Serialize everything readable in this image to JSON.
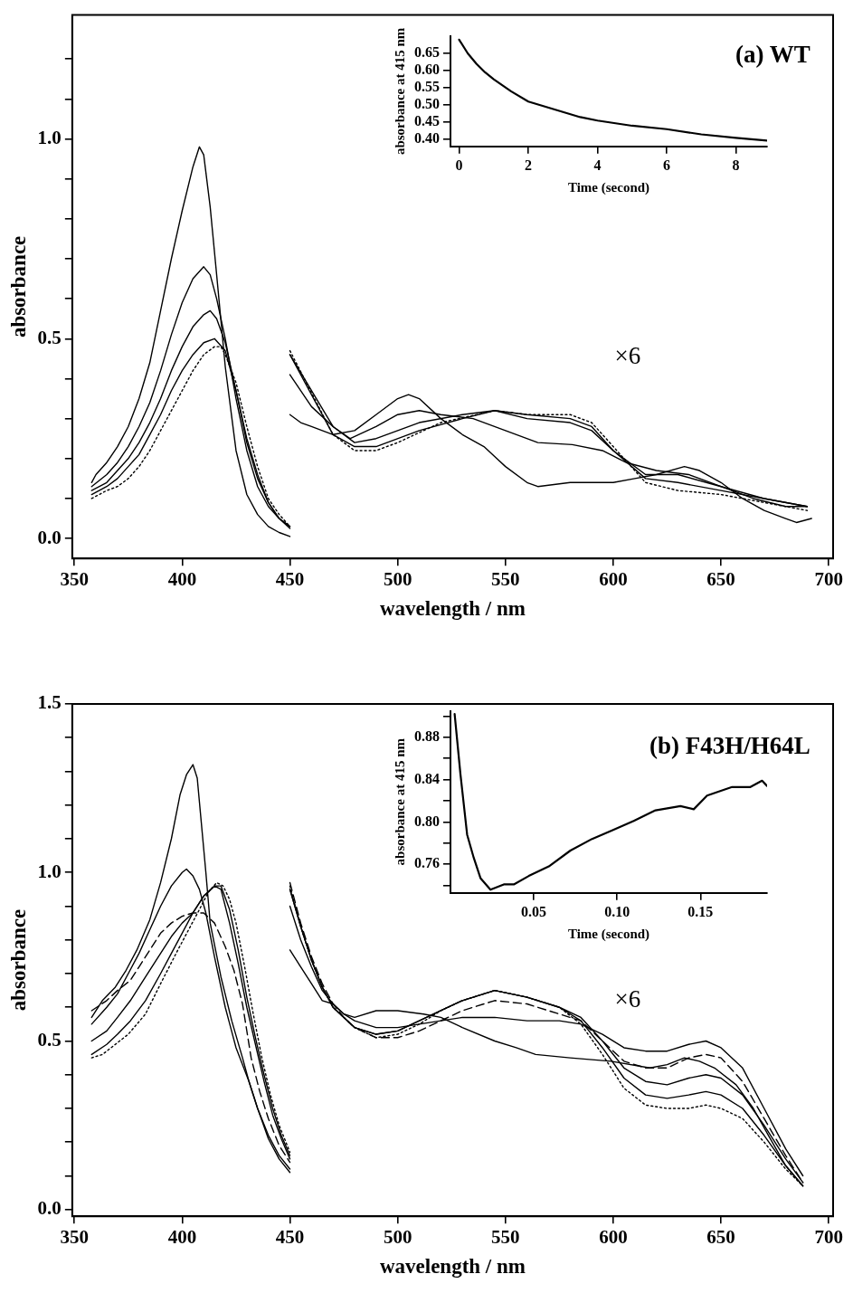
{
  "chart_data": [
    {
      "type": "line",
      "title": "(a) WT",
      "xlabel": "wavelength / nm",
      "ylabel": "absorbance",
      "annotations": [
        "×6"
      ],
      "marker": "none",
      "xlim": [
        349,
        702
      ],
      "ylim": [
        -0.05,
        1.31
      ],
      "xticks": [
        350,
        400,
        450,
        500,
        550,
        600,
        650,
        700
      ],
      "yticks": [
        {
          "value": 0,
          "label": "0.0"
        },
        {
          "value": 0.1,
          "label": null
        },
        {
          "value": 0.2,
          "label": null
        },
        {
          "value": 0.3,
          "label": null
        },
        {
          "value": 0.4,
          "label": null
        },
        {
          "value": 0.5,
          "label": "0.5"
        },
        {
          "value": 0.6,
          "label": null
        },
        {
          "value": 0.7,
          "label": null
        },
        {
          "value": 0.8,
          "label": null
        },
        {
          "value": 0.9,
          "label": null
        },
        {
          "value": 1,
          "label": "1.0"
        },
        {
          "value": 1.1,
          "label": null
        },
        {
          "value": 1.2,
          "label": null
        }
      ],
      "series": [
        {
          "color": "#000000",
          "line_style": "solid",
          "x": [
            358,
            360,
            365,
            370,
            375,
            380,
            385,
            390,
            395,
            400,
            405,
            408,
            410,
            413,
            416,
            420,
            425,
            430,
            435,
            440,
            445,
            450
          ],
          "values": [
            0.14,
            0.16,
            0.19,
            0.23,
            0.28,
            0.35,
            0.44,
            0.57,
            0.7,
            0.82,
            0.93,
            0.98,
            0.96,
            0.83,
            0.66,
            0.43,
            0.22,
            0.11,
            0.06,
            0.03,
            0.015,
            0.005
          ]
        },
        {
          "color": "#000000",
          "line_style": "solid",
          "x": [
            358,
            365,
            370,
            375,
            380,
            385,
            390,
            395,
            400,
            405,
            410,
            413,
            416,
            420,
            425,
            430,
            435,
            440,
            445,
            450
          ],
          "values": [
            0.13,
            0.16,
            0.19,
            0.23,
            0.28,
            0.34,
            0.42,
            0.51,
            0.59,
            0.65,
            0.68,
            0.66,
            0.6,
            0.5,
            0.35,
            0.22,
            0.13,
            0.08,
            0.05,
            0.025
          ]
        },
        {
          "color": "#000000",
          "line_style": "solid",
          "x": [
            358,
            365,
            370,
            375,
            380,
            385,
            390,
            395,
            400,
            405,
            410,
            413,
            416,
            420,
            425,
            430,
            435,
            440,
            445,
            450
          ],
          "values": [
            0.12,
            0.14,
            0.17,
            0.2,
            0.24,
            0.29,
            0.35,
            0.42,
            0.48,
            0.53,
            0.56,
            0.57,
            0.55,
            0.49,
            0.37,
            0.24,
            0.15,
            0.09,
            0.05,
            0.03
          ]
        },
        {
          "color": "#000000",
          "line_style": "solid",
          "x": [
            358,
            365,
            370,
            375,
            380,
            385,
            390,
            395,
            400,
            405,
            410,
            415,
            420,
            425,
            430,
            435,
            440,
            445,
            450
          ],
          "values": [
            0.11,
            0.13,
            0.15,
            0.18,
            0.21,
            0.26,
            0.31,
            0.37,
            0.42,
            0.46,
            0.49,
            0.5,
            0.47,
            0.37,
            0.25,
            0.16,
            0.09,
            0.05,
            0.03
          ]
        },
        {
          "color": "#000000",
          "line_style": "dotted",
          "x": [
            358,
            365,
            370,
            375,
            380,
            385,
            390,
            395,
            400,
            405,
            410,
            415,
            418,
            420,
            425,
            430,
            435,
            440,
            445,
            450
          ],
          "values": [
            0.1,
            0.12,
            0.13,
            0.15,
            0.18,
            0.22,
            0.27,
            0.32,
            0.37,
            0.42,
            0.46,
            0.48,
            0.48,
            0.46,
            0.39,
            0.28,
            0.18,
            0.1,
            0.06,
            0.03
          ]
        },
        {
          "color": "#000000",
          "line_style": "solid",
          "x": [
            450,
            455,
            460,
            465,
            470,
            480,
            490,
            500,
            505,
            510,
            520,
            530,
            540,
            550,
            560,
            565,
            580,
            600,
            610,
            620,
            633,
            640,
            650,
            660,
            670,
            680,
            685,
            692
          ],
          "values": [
            0.31,
            0.29,
            0.28,
            0.27,
            0.26,
            0.27,
            0.31,
            0.35,
            0.36,
            0.35,
            0.3,
            0.26,
            0.23,
            0.18,
            0.14,
            0.13,
            0.14,
            0.14,
            0.15,
            0.16,
            0.18,
            0.17,
            0.14,
            0.1,
            0.07,
            0.05,
            0.04,
            0.05
          ]
        },
        {
          "color": "#000000",
          "line_style": "solid",
          "x": [
            450,
            460,
            470,
            478,
            490,
            500,
            510,
            520,
            535,
            550,
            565,
            581,
            595,
            606,
            620,
            635,
            650,
            665,
            680,
            690
          ],
          "values": [
            0.41,
            0.33,
            0.28,
            0.25,
            0.28,
            0.31,
            0.32,
            0.31,
            0.3,
            0.27,
            0.24,
            0.235,
            0.22,
            0.19,
            0.17,
            0.16,
            0.13,
            0.1,
            0.08,
            0.08
          ]
        },
        {
          "color": "#000000",
          "line_style": "solid",
          "x": [
            450,
            470,
            480,
            490,
            510,
            530,
            545,
            560,
            580,
            590,
            600,
            615,
            630,
            650,
            670,
            690
          ],
          "values": [
            0.46,
            0.28,
            0.24,
            0.25,
            0.29,
            0.31,
            0.32,
            0.3,
            0.29,
            0.27,
            0.22,
            0.16,
            0.16,
            0.13,
            0.1,
            0.08
          ]
        },
        {
          "color": "#000000",
          "line_style": "solid",
          "x": [
            450,
            470,
            480,
            490,
            510,
            530,
            545,
            560,
            580,
            590,
            600,
            615,
            630,
            650,
            670,
            690
          ],
          "values": [
            0.46,
            0.26,
            0.23,
            0.23,
            0.27,
            0.3,
            0.32,
            0.31,
            0.3,
            0.28,
            0.22,
            0.15,
            0.14,
            0.12,
            0.1,
            0.08
          ]
        },
        {
          "color": "#000000",
          "line_style": "dotted",
          "x": [
            450,
            470,
            480,
            490,
            500,
            520,
            545,
            560,
            580,
            590,
            600,
            615,
            630,
            650,
            670,
            690
          ],
          "values": [
            0.47,
            0.26,
            0.22,
            0.22,
            0.24,
            0.29,
            0.32,
            0.31,
            0.31,
            0.29,
            0.23,
            0.14,
            0.12,
            0.11,
            0.09,
            0.07
          ]
        }
      ]
    },
    {
      "type": "line",
      "xlabel": "Time (second)",
      "ylabel": "absorbance at 415 nm",
      "marker": "none",
      "xlim": [
        -0.25,
        8.9
      ],
      "ylim": [
        0.38,
        0.7
      ],
      "xticks": [
        0,
        2,
        4,
        6,
        8
      ],
      "yticks": [
        {
          "value": 0.4,
          "label": "0.40"
        },
        0.45,
        {
          "value": 0.5,
          "label": "0.50"
        },
        0.55,
        {
          "value": 0.6,
          "label": "0.60"
        },
        0.65
      ],
      "series": [
        {
          "color": "#000000",
          "line_style": "solid",
          "x": [
            0,
            0.25,
            0.5,
            0.75,
            1,
            1.5,
            2,
            2.5,
            3,
            3.5,
            4,
            5,
            6,
            7,
            8,
            8.9
          ],
          "values": [
            0.69,
            0.65,
            0.62,
            0.595,
            0.575,
            0.54,
            0.51,
            0.495,
            0.48,
            0.465,
            0.455,
            0.44,
            0.43,
            0.415,
            0.405,
            0.397
          ]
        }
      ]
    },
    {
      "type": "line",
      "title": "(b) F43H/H64L",
      "xlabel": "wavelength / nm",
      "ylabel": "absorbance",
      "annotations": [
        "×6"
      ],
      "marker": "none",
      "xlim": [
        349,
        702
      ],
      "ylim": [
        -0.02,
        1.5
      ],
      "xticks": [
        350,
        400,
        450,
        500,
        550,
        600,
        650,
        700
      ],
      "yticks": [
        {
          "value": 0,
          "label": "0.0"
        },
        {
          "value": 0.1,
          "label": null
        },
        {
          "value": 0.2,
          "label": null
        },
        {
          "value": 0.3,
          "label": null
        },
        {
          "value": 0.4,
          "label": null
        },
        {
          "value": 0.5,
          "label": "0.5"
        },
        {
          "value": 0.6,
          "label": null
        },
        {
          "value": 0.7,
          "label": null
        },
        {
          "value": 0.8,
          "label": null
        },
        {
          "value": 0.9,
          "label": null
        },
        {
          "value": 1,
          "label": "1.0"
        },
        {
          "value": 1.1,
          "label": null
        },
        {
          "value": 1.2,
          "label": null
        },
        {
          "value": 1.3,
          "label": null
        },
        {
          "value": 1.4,
          "label": null
        },
        1.5
      ],
      "series": [
        {
          "color": "#000000",
          "line_style": "solid",
          "x": [
            358,
            363,
            369,
            374,
            379,
            385,
            390,
            395,
            399,
            402,
            405,
            407,
            409,
            411,
            413,
            418,
            423,
            428,
            431,
            435,
            440,
            445,
            450
          ],
          "values": [
            0.57,
            0.62,
            0.66,
            0.71,
            0.77,
            0.86,
            0.97,
            1.1,
            1.23,
            1.29,
            1.32,
            1.28,
            1.14,
            1,
            0.85,
            0.69,
            0.56,
            0.45,
            0.38,
            0.3,
            0.22,
            0.16,
            0.12
          ]
        },
        {
          "color": "#000000",
          "line_style": "solid",
          "x": [
            358,
            365,
            370,
            375,
            380,
            385,
            390,
            395,
            400,
            402,
            405,
            408,
            411,
            415,
            420,
            425,
            431,
            435,
            440,
            445,
            450
          ],
          "values": [
            0.55,
            0.6,
            0.64,
            0.7,
            0.76,
            0.83,
            0.9,
            0.96,
            1,
            1.01,
            0.99,
            0.95,
            0.88,
            0.75,
            0.6,
            0.48,
            0.38,
            0.3,
            0.21,
            0.15,
            0.11
          ]
        },
        {
          "color": "#000000",
          "line_style": "dashed",
          "x": [
            358,
            365,
            370,
            376,
            380,
            385,
            390,
            395,
            400,
            405,
            410,
            415,
            420,
            424,
            428,
            432,
            436,
            440,
            445,
            450
          ],
          "values": [
            0.59,
            0.62,
            0.65,
            0.68,
            0.72,
            0.77,
            0.82,
            0.85,
            0.87,
            0.88,
            0.88,
            0.85,
            0.78,
            0.71,
            0.61,
            0.45,
            0.35,
            0.27,
            0.19,
            0.14
          ]
        },
        {
          "color": "#000000",
          "line_style": "solid",
          "x": [
            358,
            365,
            370,
            376,
            383,
            390,
            395,
            400,
            405,
            410,
            415,
            418,
            422,
            426,
            430,
            434,
            438,
            442,
            446,
            450
          ],
          "values": [
            0.5,
            0.53,
            0.57,
            0.62,
            0.69,
            0.76,
            0.81,
            0.85,
            0.88,
            0.93,
            0.96,
            0.95,
            0.85,
            0.73,
            0.6,
            0.49,
            0.38,
            0.28,
            0.21,
            0.15
          ]
        },
        {
          "color": "#000000",
          "line_style": "solid",
          "x": [
            358,
            365,
            370,
            376,
            383,
            390,
            395,
            400,
            405,
            410,
            415,
            418,
            422,
            426,
            430,
            434,
            438,
            442,
            446,
            450
          ],
          "values": [
            0.46,
            0.49,
            0.52,
            0.56,
            0.62,
            0.7,
            0.76,
            0.82,
            0.88,
            0.93,
            0.96,
            0.96,
            0.89,
            0.77,
            0.63,
            0.51,
            0.4,
            0.3,
            0.22,
            0.16
          ]
        },
        {
          "color": "#000000",
          "line_style": "dotted",
          "x": [
            358,
            363,
            369,
            375,
            383,
            390,
            398,
            403,
            408,
            412,
            416,
            419,
            422,
            425,
            429,
            433,
            437,
            441,
            445,
            450
          ],
          "values": [
            0.45,
            0.46,
            0.49,
            0.52,
            0.58,
            0.67,
            0.77,
            0.83,
            0.89,
            0.94,
            0.97,
            0.96,
            0.92,
            0.85,
            0.72,
            0.58,
            0.45,
            0.34,
            0.25,
            0.17
          ]
        },
        {
          "color": "#000000",
          "line_style": "solid",
          "x": [
            450,
            455,
            460,
            465,
            470,
            475,
            480,
            490,
            500,
            512,
            520,
            530,
            545,
            555,
            564,
            580,
            599,
            617,
            625,
            633,
            640,
            647,
            657,
            665,
            672,
            680,
            688
          ],
          "values": [
            0.77,
            0.72,
            0.67,
            0.62,
            0.61,
            0.58,
            0.57,
            0.59,
            0.59,
            0.58,
            0.57,
            0.54,
            0.5,
            0.48,
            0.46,
            0.45,
            0.44,
            0.42,
            0.43,
            0.45,
            0.44,
            0.42,
            0.37,
            0.3,
            0.22,
            0.13,
            0.07
          ]
        },
        {
          "color": "#000000",
          "line_style": "solid",
          "x": [
            450,
            455,
            460,
            465,
            470,
            475,
            480,
            490,
            500,
            510,
            520,
            530,
            545,
            560,
            575,
            585,
            595,
            605,
            615,
            625,
            635,
            643,
            650,
            660,
            670,
            680,
            688
          ],
          "values": [
            0.9,
            0.8,
            0.72,
            0.65,
            0.61,
            0.58,
            0.56,
            0.54,
            0.54,
            0.55,
            0.56,
            0.57,
            0.57,
            0.56,
            0.56,
            0.55,
            0.52,
            0.48,
            0.47,
            0.47,
            0.49,
            0.5,
            0.48,
            0.42,
            0.3,
            0.18,
            0.1
          ]
        },
        {
          "color": "#000000",
          "line_style": "dashed",
          "x": [
            450,
            455,
            460,
            465,
            470,
            475,
            480,
            490,
            500,
            510,
            520,
            530,
            545,
            560,
            575,
            585,
            595,
            605,
            615,
            625,
            635,
            643,
            650,
            660,
            670,
            680,
            688
          ],
          "values": [
            0.97,
            0.85,
            0.75,
            0.67,
            0.61,
            0.57,
            0.54,
            0.51,
            0.51,
            0.53,
            0.56,
            0.59,
            0.62,
            0.61,
            0.58,
            0.56,
            0.5,
            0.44,
            0.42,
            0.42,
            0.45,
            0.46,
            0.45,
            0.38,
            0.27,
            0.16,
            0.08
          ]
        },
        {
          "color": "#000000",
          "line_style": "solid",
          "x": [
            450,
            455,
            460,
            465,
            470,
            475,
            480,
            490,
            500,
            510,
            520,
            530,
            545,
            560,
            575,
            585,
            595,
            605,
            615,
            625,
            635,
            643,
            650,
            660,
            670,
            680,
            688
          ],
          "values": [
            0.95,
            0.84,
            0.74,
            0.66,
            0.6,
            0.57,
            0.54,
            0.52,
            0.53,
            0.56,
            0.59,
            0.62,
            0.65,
            0.63,
            0.6,
            0.57,
            0.5,
            0.42,
            0.38,
            0.37,
            0.39,
            0.4,
            0.39,
            0.34,
            0.25,
            0.15,
            0.08
          ]
        },
        {
          "color": "#000000",
          "line_style": "solid",
          "x": [
            450,
            455,
            460,
            465,
            470,
            475,
            480,
            490,
            500,
            510,
            520,
            530,
            545,
            560,
            575,
            585,
            595,
            605,
            615,
            625,
            635,
            643,
            650,
            660,
            670,
            680,
            688
          ],
          "values": [
            0.95,
            0.84,
            0.74,
            0.66,
            0.6,
            0.57,
            0.54,
            0.52,
            0.53,
            0.56,
            0.59,
            0.62,
            0.65,
            0.63,
            0.6,
            0.56,
            0.48,
            0.39,
            0.34,
            0.33,
            0.34,
            0.35,
            0.34,
            0.3,
            0.22,
            0.13,
            0.07
          ]
        },
        {
          "color": "#000000",
          "line_style": "dotted",
          "x": [
            450,
            455,
            460,
            465,
            470,
            475,
            480,
            490,
            500,
            510,
            520,
            530,
            545,
            560,
            575,
            585,
            595,
            605,
            615,
            625,
            635,
            643,
            650,
            660,
            670,
            680,
            688
          ],
          "values": [
            0.96,
            0.84,
            0.74,
            0.66,
            0.6,
            0.57,
            0.54,
            0.51,
            0.52,
            0.55,
            0.59,
            0.62,
            0.65,
            0.63,
            0.6,
            0.55,
            0.46,
            0.36,
            0.31,
            0.3,
            0.3,
            0.31,
            0.3,
            0.27,
            0.2,
            0.12,
            0.07
          ]
        }
      ]
    },
    {
      "type": "line",
      "xlabel": "Time (second)",
      "ylabel": "absorbance at 415 nm",
      "marker": "none",
      "xlim": [
        0,
        0.19
      ],
      "ylim": [
        0.733,
        0.905
      ],
      "xticks": [
        0.05,
        {
          "value": 0.1,
          "label": "0.10"
        },
        0.15
      ],
      "yticks": [
        {
          "value": 0.74,
          "label": null
        },
        0.76,
        {
          "value": 0.78,
          "label": null
        },
        {
          "value": 0.8,
          "label": "0.80"
        },
        {
          "value": 0.82,
          "label": null
        },
        0.84,
        {
          "value": 0.86,
          "label": null
        },
        0.88,
        {
          "value": 0.9,
          "label": null
        }
      ],
      "series": [
        {
          "color": "#000000",
          "line_style": "solid",
          "x": [
            0.0025,
            0.006,
            0.01,
            0.014,
            0.018,
            0.024,
            0.032,
            0.038,
            0.047,
            0.059,
            0.072,
            0.085,
            0.097,
            0.11,
            0.123,
            0.138,
            0.146,
            0.154,
            0.169,
            0.18,
            0.187,
            0.19
          ],
          "values": [
            0.902,
            0.845,
            0.788,
            0.766,
            0.747,
            0.736,
            0.741,
            0.741,
            0.749,
            0.758,
            0.773,
            0.784,
            0.792,
            0.801,
            0.811,
            0.815,
            0.812,
            0.825,
            0.833,
            0.833,
            0.839,
            0.834
          ]
        }
      ]
    }
  ]
}
